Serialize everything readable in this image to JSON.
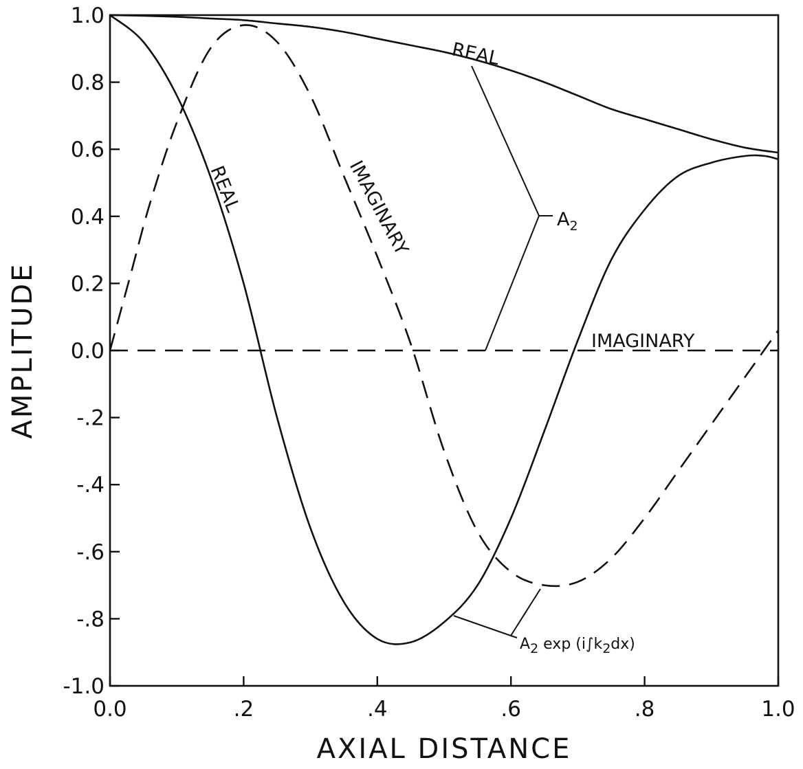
{
  "chart_data": {
    "type": "line",
    "title": "",
    "xlabel": "AXIAL DISTANCE",
    "ylabel": "AMPLITUDE",
    "xlim": [
      0.0,
      1.0
    ],
    "ylim": [
      -1.0,
      1.0
    ],
    "grid": false,
    "legend": "none",
    "x_ticks": [
      {
        "value": 0.0,
        "label": "0.0"
      },
      {
        "value": 0.2,
        "label": ".2"
      },
      {
        "value": 0.4,
        "label": ".4"
      },
      {
        "value": 0.6,
        "label": ".6"
      },
      {
        "value": 0.8,
        "label": ".8"
      },
      {
        "value": 1.0,
        "label": "1.0"
      }
    ],
    "y_ticks": [
      {
        "value": 1.0,
        "label": "1.0"
      },
      {
        "value": 0.8,
        "label": "0.8"
      },
      {
        "value": 0.6,
        "label": "0.6"
      },
      {
        "value": 0.4,
        "label": "0.4"
      },
      {
        "value": 0.2,
        "label": "0.2"
      },
      {
        "value": 0.0,
        "label": "0.0"
      },
      {
        "value": -0.2,
        "label": "-.2"
      },
      {
        "value": -0.4,
        "label": "-.4"
      },
      {
        "value": -0.6,
        "label": "-.6"
      },
      {
        "value": -0.8,
        "label": "-.8"
      },
      {
        "value": -1.0,
        "label": "-1.0"
      }
    ],
    "series": [
      {
        "style": "solid",
        "x": [
          0.0,
          0.05,
          0.1,
          0.15,
          0.2,
          0.25,
          0.3,
          0.35,
          0.4,
          0.45,
          0.5,
          0.55,
          0.6,
          0.65,
          0.7,
          0.75,
          0.8,
          0.85,
          0.9,
          0.95,
          1.0
        ],
        "y": [
          1.0,
          0.998,
          0.995,
          0.99,
          0.985,
          0.975,
          0.965,
          0.95,
          0.93,
          0.91,
          0.89,
          0.865,
          0.835,
          0.8,
          0.76,
          0.72,
          0.69,
          0.66,
          0.63,
          0.605,
          0.59
        ]
      },
      {
        "style": "dashed",
        "x": [
          0.0,
          1.0
        ],
        "y": [
          0.0,
          0.0
        ]
      },
      {
        "style": "solid",
        "x": [
          0.0,
          0.05,
          0.1,
          0.15,
          0.2,
          0.25,
          0.3,
          0.35,
          0.4,
          0.45,
          0.5,
          0.55,
          0.6,
          0.65,
          0.7,
          0.75,
          0.8,
          0.85,
          0.9,
          0.95,
          0.98,
          1.0
        ],
        "y": [
          1.0,
          0.92,
          0.76,
          0.52,
          0.2,
          -0.2,
          -0.53,
          -0.75,
          -0.86,
          -0.87,
          -0.81,
          -0.7,
          -0.5,
          -0.24,
          0.03,
          0.27,
          0.42,
          0.52,
          0.56,
          0.58,
          0.58,
          0.57
        ]
      },
      {
        "style": "dashed",
        "x": [
          0.0,
          0.03,
          0.06,
          0.1,
          0.15,
          0.2,
          0.25,
          0.3,
          0.35,
          0.4,
          0.45,
          0.5,
          0.55,
          0.6,
          0.65,
          0.7,
          0.75,
          0.8,
          0.85,
          0.9,
          0.95,
          1.0
        ],
        "y": [
          0.0,
          0.22,
          0.44,
          0.68,
          0.9,
          0.97,
          0.92,
          0.76,
          0.52,
          0.28,
          0.02,
          -0.3,
          -0.54,
          -0.66,
          -0.7,
          -0.69,
          -0.62,
          -0.5,
          -0.36,
          -0.22,
          -0.08,
          0.06
        ]
      }
    ],
    "annotations": {
      "real_top": "REAL",
      "real_left": "REAL",
      "imaginary_diag": "IMAGINARY",
      "imaginary_right": "IMAGINARY",
      "a2_main": "A",
      "a2_sub": "2",
      "a2exp_main": "A",
      "a2exp_sub": "2",
      "a2exp_rest1": " exp (i",
      "a2exp_integral": "∫",
      "a2exp_rest2": "k",
      "a2exp_sub2": "2",
      "a2exp_rest3": "dx)"
    }
  }
}
